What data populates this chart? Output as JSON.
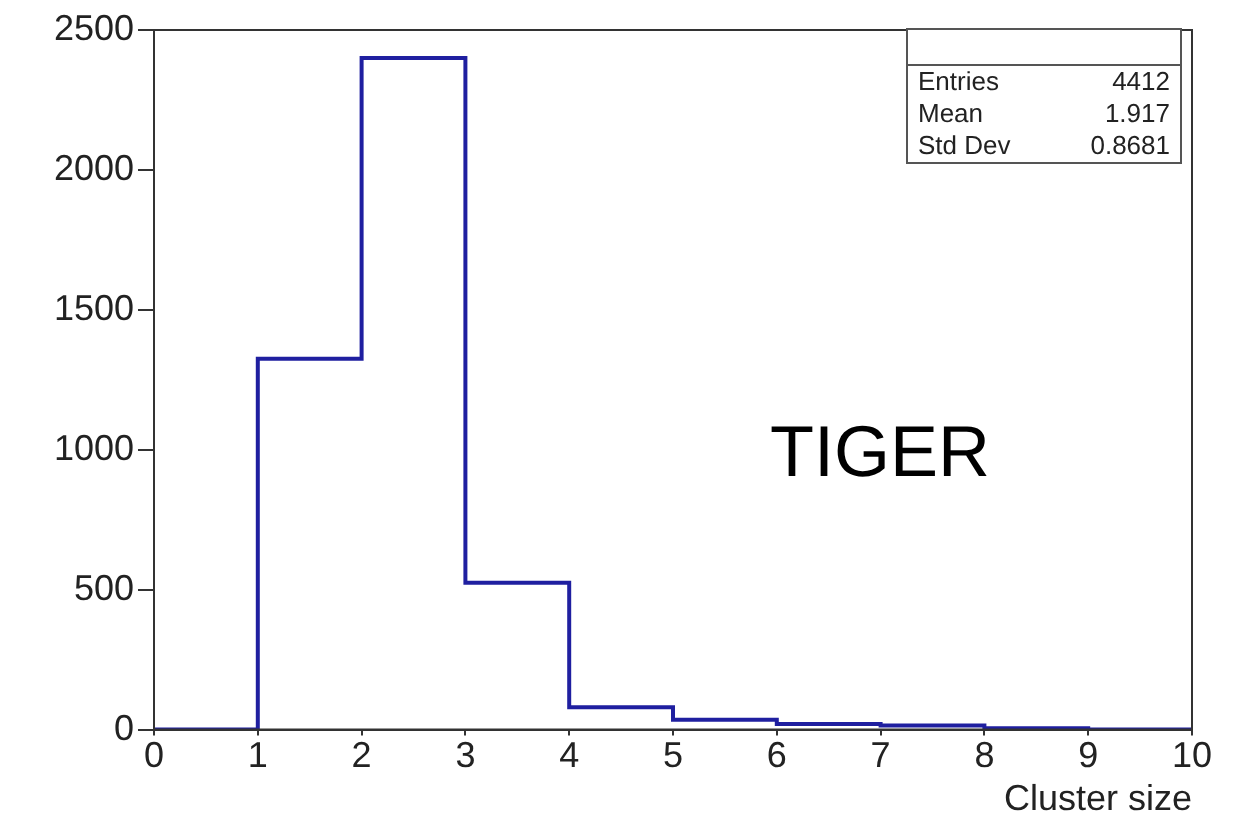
{
  "chart_data": {
    "type": "histogram",
    "xlabel": "Cluster size",
    "bins": [
      0,
      1,
      2,
      3,
      4,
      5,
      6,
      7,
      8,
      9,
      10
    ],
    "values": [
      0,
      1325,
      2400,
      525,
      80,
      35,
      20,
      15,
      5,
      0
    ],
    "color": "#1f1fa0",
    "xlim": [
      0,
      10
    ],
    "xticks": [
      0,
      1,
      2,
      3,
      4,
      5,
      6,
      7,
      8,
      9,
      10
    ],
    "ylim": [
      0,
      2500
    ],
    "yticks": [
      0,
      500,
      1000,
      1500,
      2000,
      2500
    ],
    "grid": false,
    "legend": false,
    "annotations": [
      "Entries",
      "4412",
      "Mean",
      "1.917",
      "Std Dev",
      "0.8681",
      "TIGER"
    ]
  }
}
